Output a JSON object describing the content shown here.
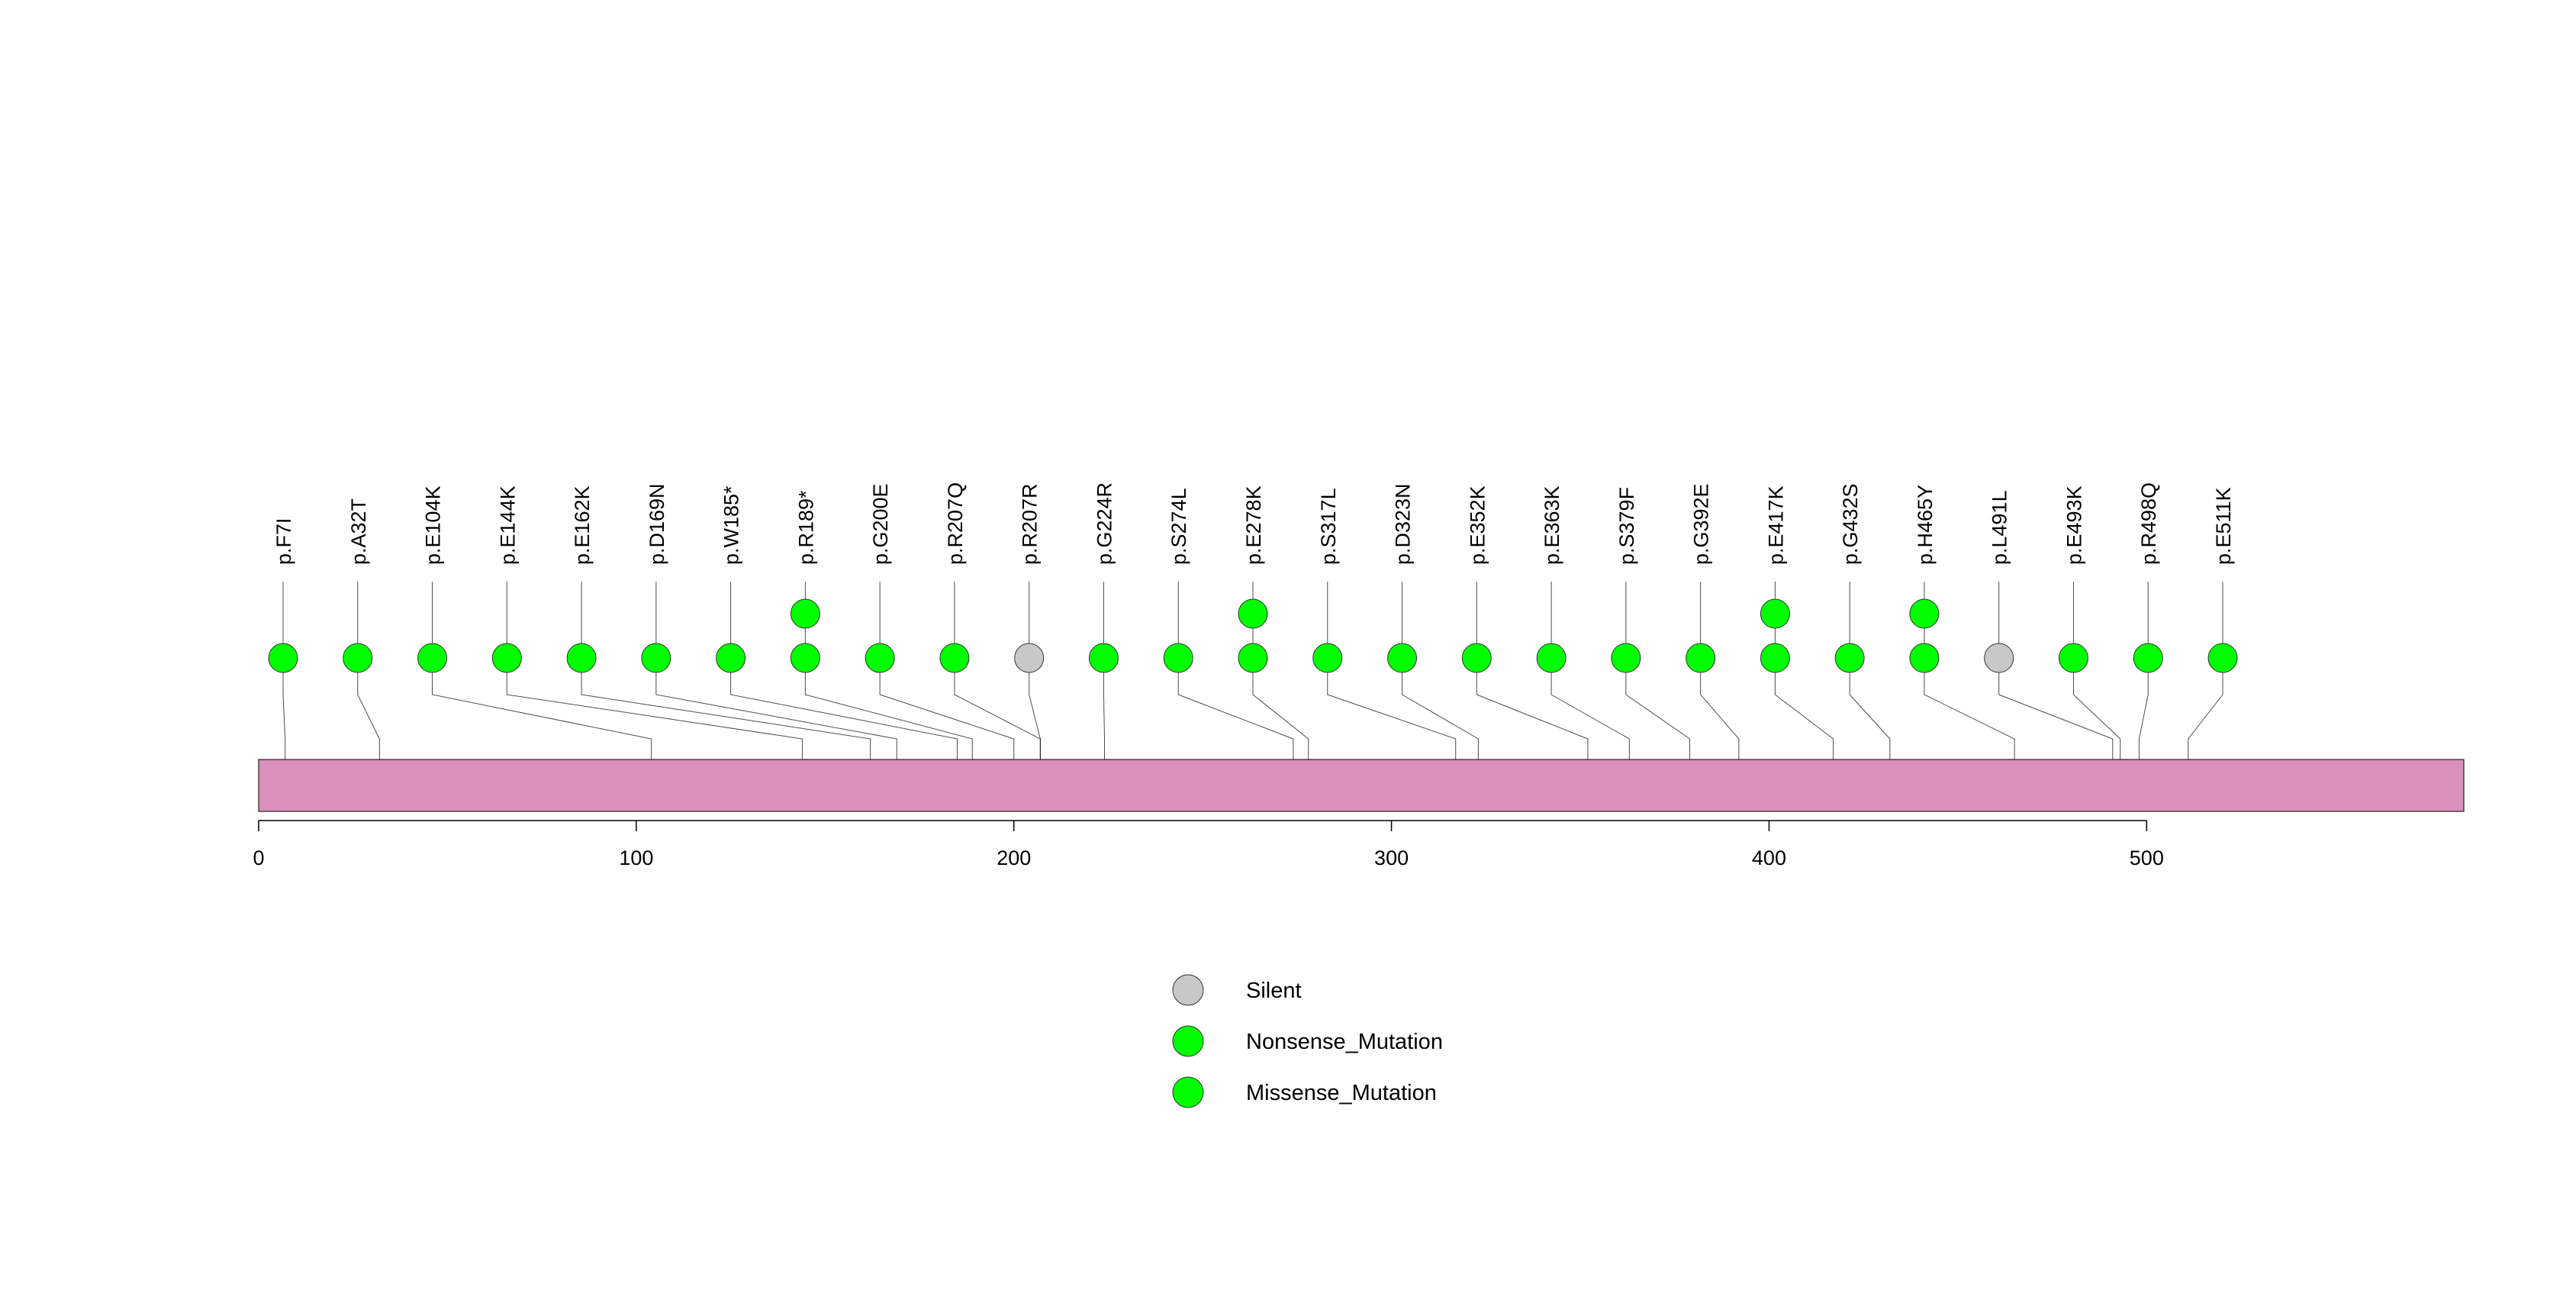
{
  "chart_data": {
    "type": "lollipop",
    "xlim": [
      0,
      584
    ],
    "protein_length": 584,
    "xticks": [
      0,
      100,
      200,
      300,
      400,
      500
    ],
    "domain_color": "#DA91BC",
    "mutations": [
      {
        "label": "p.F7I",
        "position": 7,
        "stack": [
          {
            "type": "Missense_Mutation"
          }
        ]
      },
      {
        "label": "p.A32T",
        "position": 32,
        "stack": [
          {
            "type": "Missense_Mutation"
          }
        ]
      },
      {
        "label": "p.E104K",
        "position": 104,
        "stack": [
          {
            "type": "Missense_Mutation"
          }
        ]
      },
      {
        "label": "p.E144K",
        "position": 144,
        "stack": [
          {
            "type": "Missense_Mutation"
          }
        ]
      },
      {
        "label": "p.E162K",
        "position": 162,
        "stack": [
          {
            "type": "Missense_Mutation"
          }
        ]
      },
      {
        "label": "p.D169N",
        "position": 169,
        "stack": [
          {
            "type": "Missense_Mutation"
          }
        ]
      },
      {
        "label": "p.W185*",
        "position": 185,
        "stack": [
          {
            "type": "Nonsense_Mutation"
          }
        ]
      },
      {
        "label": "p.R189*",
        "position": 189,
        "stack": [
          {
            "type": "Nonsense_Mutation"
          },
          {
            "type": "Nonsense_Mutation"
          }
        ]
      },
      {
        "label": "p.G200E",
        "position": 200,
        "stack": [
          {
            "type": "Missense_Mutation"
          }
        ]
      },
      {
        "label": "p.R207Q",
        "position": 207,
        "stack": [
          {
            "type": "Missense_Mutation"
          }
        ]
      },
      {
        "label": "p.R207R",
        "position": 207,
        "stack": [
          {
            "type": "Silent"
          }
        ]
      },
      {
        "label": "p.G224R",
        "position": 224,
        "stack": [
          {
            "type": "Missense_Mutation"
          }
        ]
      },
      {
        "label": "p.S274L",
        "position": 274,
        "stack": [
          {
            "type": "Missense_Mutation"
          }
        ]
      },
      {
        "label": "p.E278K",
        "position": 278,
        "stack": [
          {
            "type": "Missense_Mutation"
          },
          {
            "type": "Missense_Mutation"
          }
        ]
      },
      {
        "label": "p.S317L",
        "position": 317,
        "stack": [
          {
            "type": "Missense_Mutation"
          }
        ]
      },
      {
        "label": "p.D323N",
        "position": 323,
        "stack": [
          {
            "type": "Missense_Mutation"
          }
        ]
      },
      {
        "label": "p.E352K",
        "position": 352,
        "stack": [
          {
            "type": "Missense_Mutation"
          }
        ]
      },
      {
        "label": "p.E363K",
        "position": 363,
        "stack": [
          {
            "type": "Missense_Mutation"
          }
        ]
      },
      {
        "label": "p.S379F",
        "position": 379,
        "stack": [
          {
            "type": "Missense_Mutation"
          }
        ]
      },
      {
        "label": "p.G392E",
        "position": 392,
        "stack": [
          {
            "type": "Missense_Mutation"
          }
        ]
      },
      {
        "label": "p.E417K",
        "position": 417,
        "stack": [
          {
            "type": "Missense_Mutation"
          },
          {
            "type": "Missense_Mutation"
          }
        ]
      },
      {
        "label": "p.G432S",
        "position": 432,
        "stack": [
          {
            "type": "Missense_Mutation"
          }
        ]
      },
      {
        "label": "p.H465Y",
        "position": 465,
        "stack": [
          {
            "type": "Missense_Mutation"
          },
          {
            "type": "Missense_Mutation"
          }
        ]
      },
      {
        "label": "p.L491L",
        "position": 491,
        "stack": [
          {
            "type": "Silent"
          }
        ]
      },
      {
        "label": "p.E493K",
        "position": 493,
        "stack": [
          {
            "type": "Missense_Mutation"
          }
        ]
      },
      {
        "label": "p.R498Q",
        "position": 498,
        "stack": [
          {
            "type": "Missense_Mutation"
          }
        ]
      },
      {
        "label": "p.E511K",
        "position": 511,
        "stack": [
          {
            "type": "Missense_Mutation"
          }
        ]
      }
    ],
    "legend": {
      "placement": "bottom-center",
      "entries": [
        {
          "label": "Silent",
          "color": "#C8C8C8"
        },
        {
          "label": "Nonsense_Mutation",
          "color": "#00FF00"
        },
        {
          "label": "Missense_Mutation",
          "color": "#00FF00"
        }
      ]
    }
  }
}
